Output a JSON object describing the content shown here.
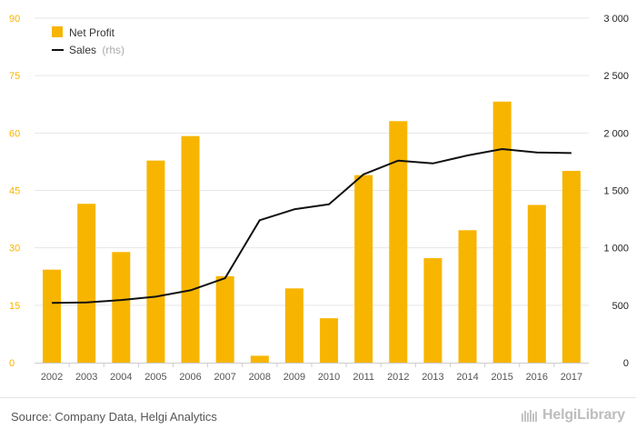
{
  "chart_data": {
    "type": "bar",
    "categories": [
      "2002",
      "2003",
      "2004",
      "2005",
      "2006",
      "2007",
      "2008",
      "2009",
      "2010",
      "2011",
      "2012",
      "2013",
      "2014",
      "2015",
      "2016",
      "2017"
    ],
    "series": [
      {
        "name": "Net Profit",
        "type": "bar",
        "axis": "left",
        "color": "#f7b500",
        "values": [
          24.3,
          41.5,
          28.9,
          52.8,
          59.2,
          22.6,
          1.8,
          19.4,
          11.6,
          49.0,
          63.1,
          27.3,
          34.6,
          68.2,
          41.2,
          50.1
        ]
      },
      {
        "name": "Sales",
        "name_suffix": "(rhs)",
        "type": "line",
        "axis": "right",
        "color": "#111111",
        "values": [
          520,
          525,
          545,
          575,
          630,
          735,
          1240,
          1335,
          1380,
          1640,
          1760,
          1735,
          1805,
          1860,
          1830,
          1825
        ]
      }
    ],
    "y_left": {
      "ylim": [
        0,
        90
      ],
      "ticks": [
        "0",
        "15",
        "30",
        "45",
        "60",
        "75",
        "90"
      ],
      "color": "#f7b500"
    },
    "y_right": {
      "ylim": [
        0,
        3000
      ],
      "ticks": [
        "0",
        "500",
        "1 000",
        "1 500",
        "2 000",
        "2 500",
        "3 000"
      ]
    },
    "grid": true,
    "legend": "top-left"
  },
  "legend": {
    "net_profit_label": "Net Profit",
    "sales_label": "Sales",
    "sales_suffix": "(rhs)"
  },
  "footer": {
    "source": "Source: Company Data, Helgi Analytics",
    "brand": "HelgiLibrary"
  }
}
